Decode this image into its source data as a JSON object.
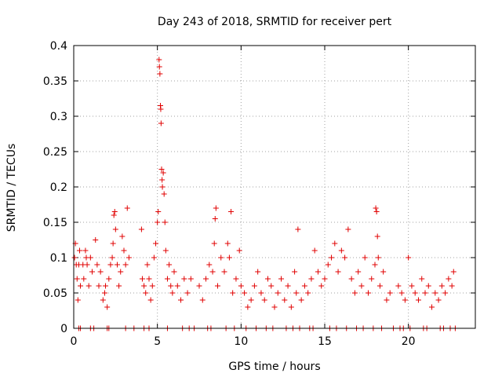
{
  "chart_data": {
    "type": "scatter",
    "title": "Day 243 of 2018, SRMTID for receiver pert",
    "xlabel": "GPS time / hours",
    "ylabel": "SRMTID / TECUs",
    "xlim": [
      0,
      24
    ],
    "ylim": [
      0,
      0.4
    ],
    "xticks": [
      0,
      5,
      10,
      15,
      20
    ],
    "yticks": [
      0,
      0.05,
      0.1,
      0.15,
      0.2,
      0.25,
      0.3,
      0.35,
      0.4
    ],
    "grid": true,
    "marker": "+",
    "color": "#e00000",
    "series": [
      {
        "name": "pert",
        "x": [
          0.05,
          0.1,
          0.15,
          0.2,
          0.25,
          0.3,
          0.35,
          0.4,
          0.55,
          0.6,
          0.7,
          0.75,
          0.8,
          0.9,
          1.0,
          1.1,
          1.3,
          1.4,
          1.5,
          1.6,
          1.75,
          1.85,
          1.9,
          2.0,
          2.1,
          2.2,
          2.3,
          2.35,
          2.4,
          2.45,
          2.5,
          2.6,
          2.7,
          2.8,
          2.9,
          3.0,
          3.1,
          3.2,
          3.3,
          4.05,
          4.1,
          4.2,
          4.3,
          4.4,
          4.5,
          4.6,
          4.7,
          4.8,
          4.9,
          5.0,
          5.05,
          5.1,
          5.12,
          5.15,
          5.18,
          5.2,
          5.22,
          5.25,
          5.28,
          5.3,
          5.35,
          5.4,
          5.45,
          5.5,
          5.6,
          5.7,
          5.8,
          5.9,
          6.0,
          6.2,
          6.4,
          6.6,
          6.8,
          7.0,
          7.5,
          7.7,
          7.9,
          8.1,
          8.3,
          8.4,
          8.45,
          8.5,
          8.6,
          8.8,
          9.0,
          9.2,
          9.3,
          9.4,
          9.5,
          9.7,
          9.9,
          10.0,
          10.2,
          10.4,
          10.6,
          10.8,
          11.0,
          11.2,
          11.4,
          11.6,
          11.8,
          12.0,
          12.2,
          12.4,
          12.6,
          12.8,
          13.0,
          13.2,
          13.3,
          13.4,
          13.6,
          13.8,
          14.0,
          14.2,
          14.4,
          14.6,
          14.8,
          15.0,
          15.2,
          15.4,
          15.6,
          15.8,
          16.0,
          16.2,
          16.4,
          16.6,
          16.8,
          17.0,
          17.2,
          17.4,
          17.6,
          17.8,
          18.0,
          18.05,
          18.1,
          18.15,
          18.2,
          18.3,
          18.5,
          18.7,
          18.9,
          19.4,
          19.6,
          19.8,
          20.0,
          20.2,
          20.4,
          20.6,
          20.8,
          21.0,
          21.2,
          21.4,
          21.6,
          21.8,
          22.0,
          22.2,
          22.4,
          22.6,
          22.7,
          0.3,
          1.2,
          2.0,
          3.6,
          4.2,
          6.5,
          7.2,
          8.0,
          9.1,
          10.3,
          11.5,
          12.7,
          13.5,
          14.3,
          15.3,
          16.3,
          17.3,
          18.4,
          19.1,
          19.5,
          20.1,
          21.1,
          22.1,
          22.8,
          0.4,
          1.0,
          2.1,
          3.1,
          4.5,
          5.6,
          6.9,
          8.2,
          9.6,
          10.9,
          11.9,
          13.1,
          14.1,
          15.7,
          16.9,
          17.9,
          19.7,
          20.9,
          21.9,
          22.5
        ],
        "y": [
          0.1,
          0.12,
          0.09,
          0.07,
          0.04,
          0.09,
          0.11,
          0.06,
          0.09,
          0.07,
          0.11,
          0.1,
          0.09,
          0.06,
          0.1,
          0.08,
          0.125,
          0.09,
          0.06,
          0.08,
          0.04,
          0.05,
          0.06,
          0.03,
          0.07,
          0.09,
          0.1,
          0.12,
          0.16,
          0.165,
          0.14,
          0.09,
          0.06,
          0.08,
          0.13,
          0.11,
          0.09,
          0.17,
          0.1,
          0.14,
          0.07,
          0.06,
          0.05,
          0.09,
          0.07,
          0.04,
          0.06,
          0.1,
          0.12,
          0.15,
          0.165,
          0.38,
          0.37,
          0.36,
          0.315,
          0.31,
          0.29,
          0.225,
          0.21,
          0.2,
          0.22,
          0.19,
          0.15,
          0.11,
          0.07,
          0.09,
          0.06,
          0.05,
          0.08,
          0.06,
          0.04,
          0.07,
          0.05,
          0.07,
          0.06,
          0.04,
          0.07,
          0.09,
          0.08,
          0.12,
          0.155,
          0.17,
          0.06,
          0.1,
          0.08,
          0.12,
          0.1,
          0.165,
          0.05,
          0.07,
          0.11,
          0.06,
          0.05,
          0.03,
          0.04,
          0.06,
          0.08,
          0.05,
          0.04,
          0.07,
          0.06,
          0.03,
          0.05,
          0.07,
          0.04,
          0.06,
          0.03,
          0.08,
          0.05,
          0.14,
          0.04,
          0.06,
          0.05,
          0.07,
          0.11,
          0.08,
          0.06,
          0.07,
          0.09,
          0.1,
          0.12,
          0.08,
          0.11,
          0.1,
          0.14,
          0.07,
          0.05,
          0.08,
          0.06,
          0.1,
          0.05,
          0.07,
          0.09,
          0.17,
          0.165,
          0.13,
          0.1,
          0.06,
          0.08,
          0.04,
          0.05,
          0.06,
          0.05,
          0.04,
          0.1,
          0.06,
          0.05,
          0.04,
          0.07,
          0.05,
          0.06,
          0.03,
          0.05,
          0.04,
          0.06,
          0.05,
          0.07,
          0.06,
          0.08,
          0.0,
          0.0,
          0.0,
          0.0,
          0.0,
          0.0,
          0.0,
          0.0,
          0.0,
          0.0,
          0.0,
          0.0,
          0.0,
          0.0,
          0.0,
          0.0,
          0.0,
          0.0,
          0.0,
          0.0,
          0.0,
          0.0,
          0.0,
          0.0,
          0.0,
          0.0,
          0.0,
          0.0,
          0.0,
          0.0,
          0.0,
          0.0,
          0.0,
          0.0,
          0.0,
          0.0,
          0.0,
          0.0,
          0.0,
          0.0,
          0.0,
          0.0,
          0.0,
          0.0
        ]
      }
    ]
  }
}
